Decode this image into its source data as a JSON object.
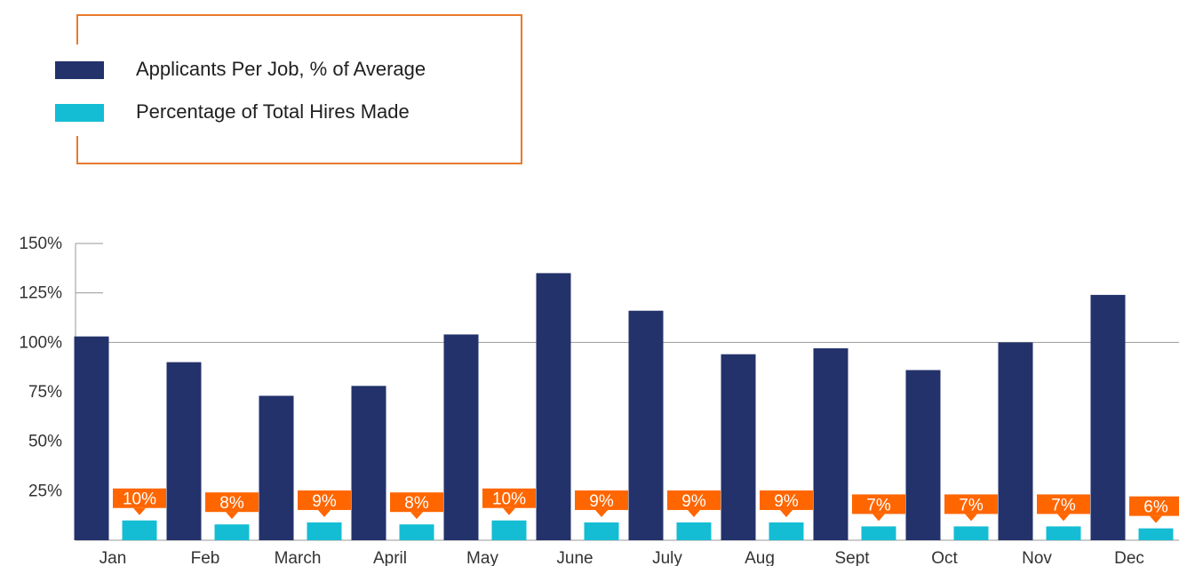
{
  "chart_data": {
    "type": "bar",
    "categories": [
      "Jan",
      "Feb",
      "March",
      "April",
      "May",
      "June",
      "July",
      "Aug",
      "Sept",
      "Oct",
      "Nov",
      "Dec"
    ],
    "series": [
      {
        "name": "Applicants Per Job, % of Average",
        "values": [
          103,
          90,
          73,
          78,
          104,
          135,
          116,
          94,
          97,
          86,
          100,
          124
        ],
        "color": "#23326A"
      },
      {
        "name": "Percentage of Total Hires Made",
        "values": [
          10,
          8,
          9,
          8,
          10,
          9,
          9,
          9,
          7,
          7,
          7,
          6
        ],
        "data_labels": [
          "10%",
          "8%",
          "9%",
          "8%",
          "10%",
          "9%",
          "9%",
          "9%",
          "7%",
          "7%",
          "7%",
          "6%"
        ],
        "color": "#14BDD3"
      }
    ],
    "title": "",
    "xlabel": "",
    "ylabel": "",
    "ylim": [
      0,
      150
    ],
    "yticks": [
      25,
      50,
      75,
      100,
      125,
      150
    ],
    "ytick_labels": [
      "25%",
      "50%",
      "75%",
      "100%",
      "125%",
      "150%"
    ],
    "reference_line": 100,
    "grid": false,
    "legend_position": "top-left",
    "callout_color": "#FF6600",
    "legend_border_color": "#E8792C"
  }
}
